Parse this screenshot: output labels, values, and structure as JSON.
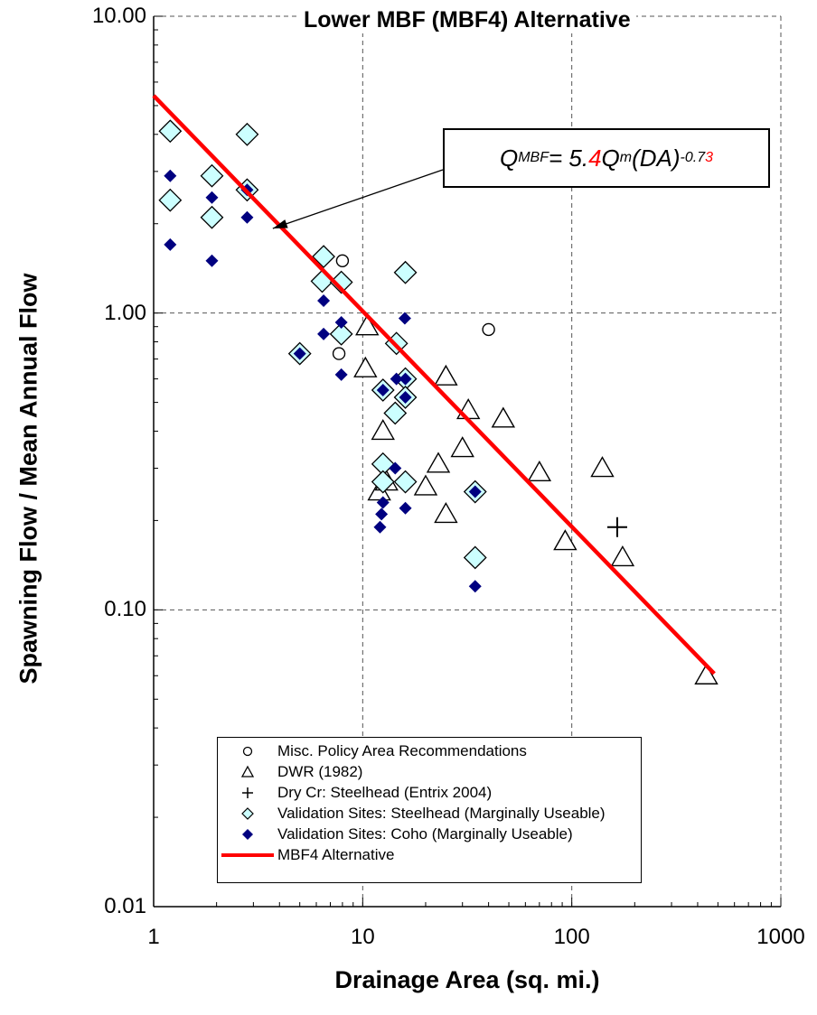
{
  "chart_data": {
    "type": "scatter",
    "title": "Lower MBF (MBF4) Alternative",
    "xlabel": "Drainage Area (sq. mi.)",
    "ylabel": "Spawning Flow / Mean Annual Flow",
    "x_scale": "log",
    "y_scale": "log",
    "xlim": [
      1,
      1000
    ],
    "ylim": [
      0.01,
      10
    ],
    "x_ticks": [
      1,
      10,
      100,
      1000
    ],
    "x_tick_labels": [
      "1",
      "10",
      "100",
      "1000"
    ],
    "y_ticks": [
      0.01,
      0.1,
      1,
      10
    ],
    "y_tick_labels": [
      "0.01",
      "0.10",
      "1.00",
      "10.00"
    ],
    "grid": true,
    "legend_position": "bottom-center",
    "annotation": {
      "text_parts": [
        "Q",
        "MBF",
        " = 5.",
        "4",
        " Q",
        "m",
        " (DA)",
        "-0.7",
        "3"
      ],
      "red_parts": [
        "4",
        "3"
      ],
      "points_to": [
        3.5,
        1.9
      ]
    },
    "series": [
      {
        "name": "Misc. Policy Area Recommendations",
        "marker": "circle",
        "color": "#000000",
        "points": [
          [
            8,
            1.5
          ],
          [
            7.7,
            0.73
          ],
          [
            40,
            0.88
          ]
        ]
      },
      {
        "name": "DWR (1982)",
        "marker": "triangle",
        "color": "#000000",
        "points": [
          [
            10.5,
            0.9
          ],
          [
            10.3,
            0.65
          ],
          [
            12.5,
            0.4
          ],
          [
            12,
            0.25
          ],
          [
            13,
            0.27
          ],
          [
            20,
            0.26
          ],
          [
            23,
            0.31
          ],
          [
            25,
            0.61
          ],
          [
            25,
            0.21
          ],
          [
            30,
            0.35
          ],
          [
            32,
            0.47
          ],
          [
            47,
            0.44
          ],
          [
            70,
            0.29
          ],
          [
            93,
            0.17
          ],
          [
            140,
            0.3
          ],
          [
            175,
            0.15
          ],
          [
            440,
            0.06
          ]
        ]
      },
      {
        "name": "Dry Cr: Steelhead (Entrix 2004)",
        "marker": "plus",
        "color": "#000000",
        "points": [
          [
            165,
            0.19
          ]
        ]
      },
      {
        "name": "Validation Sites: Steelhead (Marginally Useable)",
        "marker": "diamond",
        "color": "#ccffff",
        "points": [
          [
            1.2,
            4.1
          ],
          [
            1.2,
            2.4
          ],
          [
            1.9,
            2.9
          ],
          [
            1.9,
            2.1
          ],
          [
            2.8,
            4.0
          ],
          [
            2.8,
            2.6
          ],
          [
            5.0,
            0.73
          ],
          [
            6.5,
            1.55
          ],
          [
            6.4,
            1.28
          ],
          [
            7.9,
            1.27
          ],
          [
            7.9,
            0.85
          ],
          [
            14.5,
            0.79
          ],
          [
            16,
            1.37
          ],
          [
            12.5,
            0.55
          ],
          [
            16,
            0.6
          ],
          [
            16,
            0.52
          ],
          [
            14.3,
            0.46
          ],
          [
            12.5,
            0.31
          ],
          [
            12.5,
            0.27
          ],
          [
            16,
            0.27
          ],
          [
            34.5,
            0.25
          ],
          [
            34.5,
            0.15
          ]
        ]
      },
      {
        "name": "Validation Sites: Coho (Marginally Useable)",
        "marker": "filled-diamond",
        "color": "#000080",
        "points": [
          [
            1.2,
            2.9
          ],
          [
            1.2,
            1.7
          ],
          [
            1.9,
            2.45
          ],
          [
            1.9,
            1.5
          ],
          [
            2.8,
            2.6
          ],
          [
            2.8,
            2.1
          ],
          [
            5.0,
            0.73
          ],
          [
            6.5,
            1.1
          ],
          [
            6.5,
            0.85
          ],
          [
            7.9,
            0.93
          ],
          [
            7.9,
            0.62
          ],
          [
            12.5,
            0.55
          ],
          [
            14.5,
            0.6
          ],
          [
            15.9,
            0.96
          ],
          [
            16,
            0.6
          ],
          [
            16,
            0.52
          ],
          [
            14.3,
            0.3
          ],
          [
            12.5,
            0.23
          ],
          [
            12.3,
            0.21
          ],
          [
            12.1,
            0.19
          ],
          [
            16,
            0.22
          ],
          [
            34.5,
            0.25
          ],
          [
            34.5,
            0.12
          ]
        ]
      },
      {
        "name": "MBF4 Alternative",
        "marker": "line",
        "color": "#ff0000",
        "points": [
          [
            1,
            5.4
          ],
          [
            480,
            0.061
          ]
        ]
      }
    ]
  }
}
